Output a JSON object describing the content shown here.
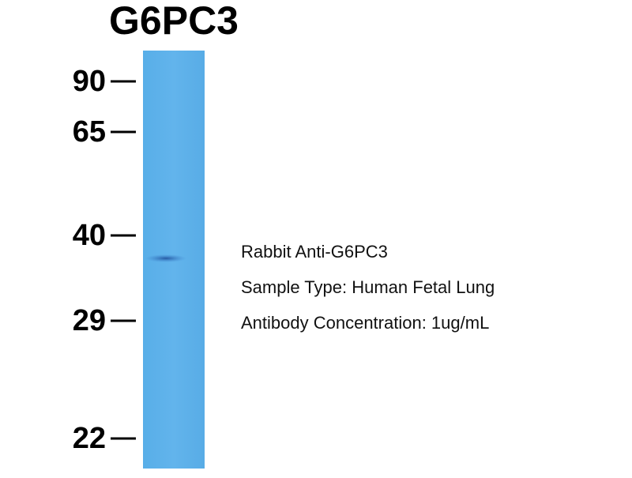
{
  "title": "G6PC3",
  "markers": [
    90,
    65,
    40,
    29,
    22
  ],
  "notes": [
    "Rabbit Anti-G6PC3",
    "Sample Type: Human Fetal Lung",
    "Antibody Concentration: 1ug/mL"
  ]
}
